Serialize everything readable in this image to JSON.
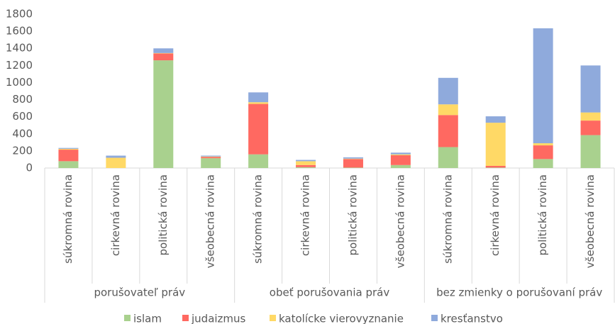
{
  "chart_data": {
    "type": "stacked_bar",
    "groups": [
      {
        "label": "porušovateľ práv",
        "categories": [
          "súkromná rovina",
          "cirkevná rovina",
          "politická rovina",
          "všeobecná rovina"
        ]
      },
      {
        "label": "obeť porušovania práv",
        "categories": [
          "súkromná rovina",
          "cirkevná rovina",
          "politická rovina",
          "všeobecná rovina"
        ]
      },
      {
        "label": "bez zmienky o porušovaní práv",
        "categories": [
          "súkromná rovina",
          "cirkevná rovina",
          "politická rovina",
          "všeobecná rovina"
        ]
      }
    ],
    "series": [
      {
        "name": "islam",
        "color": "#a9d18e",
        "values": [
          80,
          0,
          1260,
          115,
          160,
          10,
          5,
          35,
          245,
          5,
          105,
          385
        ]
      },
      {
        "name": "judaizmus",
        "color": "#ff6961",
        "values": [
          135,
          0,
          80,
          15,
          590,
          25,
          100,
          115,
          375,
          20,
          160,
          170
        ]
      },
      {
        "name": "katolícke vierovyznanie",
        "color": "#ffd966",
        "values": [
          10,
          120,
          5,
          5,
          20,
          45,
          5,
          10,
          125,
          505,
          25,
          95
        ]
      },
      {
        "name": "kresťanstvo",
        "color": "#8faadc",
        "values": [
          10,
          25,
          55,
          10,
          115,
          15,
          15,
          20,
          310,
          75,
          1345,
          550
        ]
      }
    ],
    "ylim": [
      0,
      1800
    ],
    "yticks": [
      0,
      200,
      400,
      600,
      800,
      1000,
      1200,
      1400,
      1600,
      1800
    ],
    "grid": false,
    "legend": "bottom"
  }
}
